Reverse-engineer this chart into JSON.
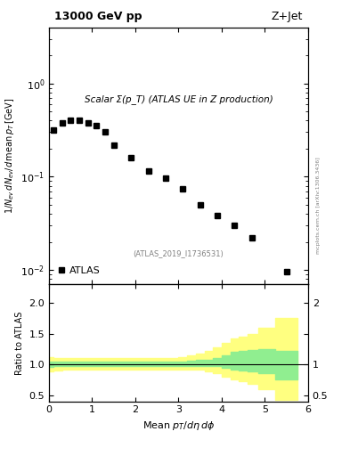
{
  "title_left": "13000 GeV pp",
  "title_right": "Z+Jet",
  "plot_label": "Scalar Σ(p_T) (ATLAS UE in Z production)",
  "atlas_label": "ATLAS",
  "reference_label": "(ATLAS_2019_I1736531)",
  "watermark": "mcplots.cern.ch [arXiv:1306.3436]",
  "ylabel_main": "1/N_ev dN_ev/d mean p_T [GeV]",
  "ylabel_ratio": "Ratio to ATLAS",
  "xlabel": "Mean p_T/dη dφ",
  "xlim": [
    0,
    6
  ],
  "ylim_main_log": [
    0.007,
    4.0
  ],
  "ylim_ratio": [
    0.4,
    2.3
  ],
  "data_x": [
    0.1,
    0.3,
    0.5,
    0.7,
    0.9,
    1.1,
    1.3,
    1.5,
    1.9,
    2.3,
    2.7,
    3.1,
    3.5,
    3.9,
    4.3,
    4.7,
    5.5
  ],
  "data_y": [
    0.32,
    0.38,
    0.4,
    0.4,
    0.38,
    0.35,
    0.3,
    0.22,
    0.16,
    0.115,
    0.097,
    0.075,
    0.05,
    0.038,
    0.03,
    0.022,
    0.0095
  ],
  "ratio_x": [
    0.05,
    0.15,
    0.25,
    0.35,
    0.45,
    0.55,
    0.65,
    0.75,
    0.85,
    0.95,
    1.1,
    1.3,
    1.5,
    1.7,
    1.9,
    2.1,
    2.3,
    2.5,
    2.7,
    2.9,
    3.1,
    3.3,
    3.5,
    3.7,
    3.9,
    4.1,
    4.3,
    4.5,
    4.7,
    5.0,
    5.5
  ],
  "ratio_y_green_lo": [
    0.96,
    0.97,
    0.97,
    0.97,
    0.97,
    0.97,
    0.97,
    0.97,
    0.97,
    0.97,
    0.97,
    0.97,
    0.97,
    0.97,
    0.97,
    0.97,
    0.97,
    0.97,
    0.97,
    0.97,
    0.97,
    0.97,
    0.97,
    0.97,
    0.97,
    0.95,
    0.92,
    0.9,
    0.88,
    0.85,
    0.75
  ],
  "ratio_y_green_hi": [
    1.05,
    1.05,
    1.04,
    1.04,
    1.04,
    1.04,
    1.04,
    1.04,
    1.04,
    1.04,
    1.04,
    1.04,
    1.04,
    1.04,
    1.04,
    1.04,
    1.04,
    1.04,
    1.05,
    1.05,
    1.05,
    1.06,
    1.07,
    1.08,
    1.1,
    1.15,
    1.2,
    1.22,
    1.24,
    1.25,
    1.22
  ],
  "ratio_y_yellow_lo": [
    0.88,
    0.9,
    0.9,
    0.91,
    0.91,
    0.91,
    0.91,
    0.91,
    0.91,
    0.91,
    0.91,
    0.91,
    0.91,
    0.91,
    0.91,
    0.91,
    0.91,
    0.91,
    0.91,
    0.91,
    0.91,
    0.91,
    0.91,
    0.88,
    0.85,
    0.8,
    0.75,
    0.72,
    0.68,
    0.6,
    0.42
  ],
  "ratio_y_yellow_hi": [
    1.12,
    1.1,
    1.1,
    1.1,
    1.1,
    1.1,
    1.1,
    1.1,
    1.1,
    1.1,
    1.1,
    1.1,
    1.1,
    1.1,
    1.1,
    1.1,
    1.1,
    1.1,
    1.1,
    1.11,
    1.12,
    1.15,
    1.18,
    1.22,
    1.28,
    1.35,
    1.42,
    1.45,
    1.5,
    1.6,
    1.75
  ],
  "color_data": "black",
  "color_green": "#90EE90",
  "color_yellow": "#FFFF80",
  "marker_size": 5,
  "marker_style": "s"
}
